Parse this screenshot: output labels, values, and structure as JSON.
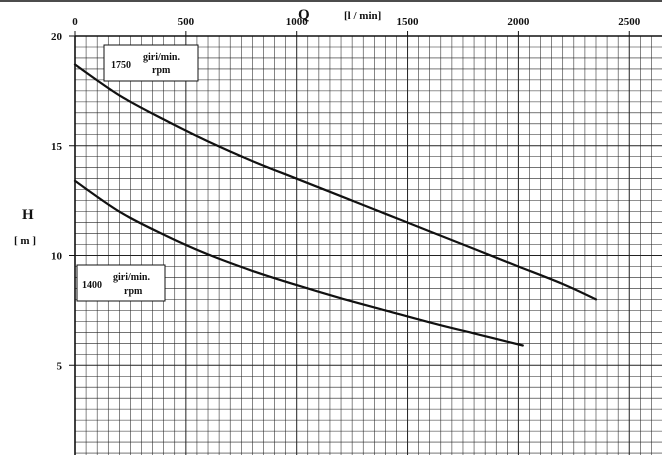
{
  "chart_data": {
    "type": "line",
    "title": "",
    "xlabel": "Q",
    "x_unit": "l / min",
    "ylabel": "H",
    "y_unit": "m",
    "xlim": [
      0,
      2650
    ],
    "ylim": [
      1,
      20
    ],
    "x_ticks": [
      "0",
      "500",
      "1000",
      "1500",
      "2000",
      "2500"
    ],
    "x_tick_values": [
      0,
      500,
      1000,
      1500,
      2000,
      2500
    ],
    "y_ticks": [
      "20",
      "15",
      "10",
      "5"
    ],
    "y_tick_values": [
      20,
      15,
      10,
      5
    ],
    "grid": true,
    "series": [
      {
        "name": "1750 giri/min. rpm",
        "speed": "1750",
        "unit_top": "giri/min.",
        "unit_bottom": "rpm",
        "x": [
          0,
          200,
          400,
          600,
          800,
          1000,
          1200,
          1400,
          1600,
          1800,
          2000,
          2200,
          2350
        ],
        "y": [
          18.7,
          17.3,
          16.2,
          15.2,
          14.3,
          13.5,
          12.7,
          11.9,
          11.1,
          10.3,
          9.5,
          8.7,
          8.0
        ]
      },
      {
        "name": "1400 giri/min. rpm",
        "speed": "1400",
        "unit_top": "giri/min.",
        "unit_bottom": "rpm",
        "x": [
          0,
          200,
          400,
          600,
          800,
          1000,
          1200,
          1400,
          1600,
          1800,
          2020
        ],
        "y": [
          13.4,
          12.0,
          10.95,
          10.05,
          9.3,
          8.65,
          8.05,
          7.5,
          6.95,
          6.45,
          5.9
        ]
      }
    ]
  }
}
